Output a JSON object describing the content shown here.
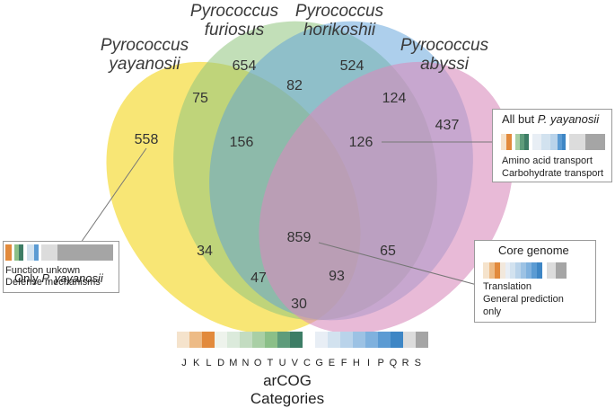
{
  "species": {
    "yayanosii": [
      "Pyrococcus",
      "yayanosii"
    ],
    "furiosus": [
      "Pyrococcus",
      "furiosus"
    ],
    "horikoshii": [
      "Pyrococcus",
      "horikoshii"
    ],
    "abyssi": [
      "Pyrococcus",
      "abyssi"
    ]
  },
  "counts": {
    "Y": "558",
    "F": "654",
    "H": "524",
    "A": "437",
    "YF": "75",
    "FH": "82",
    "HA": "124",
    "YFH": "156",
    "FHA": "126",
    "YFHA": "859",
    "YA": "30",
    "YFA": "47",
    "YHA": "93",
    "YH": "34",
    "FA": "65"
  },
  "colors": {
    "yayanosii": "#f5dc3a",
    "furiosus": "#8fc57d",
    "horikoshii": "#5b9fd9",
    "abyssi": "#d88cbd"
  },
  "callouts": {
    "all_but": {
      "title_prefix": "All but ",
      "title_species": "P. yayanosii",
      "line1": "Amino acid transport",
      "line2": "Carbohydrate transport"
    },
    "only": {
      "line1": "Function unkown",
      "line2": "Defense mechanisms",
      "caption_prefix": "Only ",
      "caption_species": "P. yayanosii"
    },
    "core": {
      "title": "Core genome",
      "line1": "Translation",
      "line2": "General prediction",
      "line3": "only"
    }
  },
  "arcog": {
    "title": "arCOG Categories",
    "letters": [
      "J",
      "K",
      "L",
      "D",
      "M",
      "N",
      "O",
      "T",
      "U",
      "V",
      "C",
      "G",
      "E",
      "F",
      "H",
      "I",
      "P",
      "Q",
      "R",
      "S"
    ],
    "colors": [
      "#f5e3cc",
      "#edbb86",
      "#e28a3c",
      "#eef3ec",
      "#dbeadb",
      "#c3dcc1",
      "#a9cfa5",
      "#8bbf88",
      "#5e9c7b",
      "#3d7d66",
      "#ffffff",
      "#e8eef5",
      "#d2e2ef",
      "#b9d3ea",
      "#9cc2e4",
      "#7fb1de",
      "#5b9bd3",
      "#3e86c5",
      "#dcdcdc",
      "#a5a5a5"
    ]
  }
}
